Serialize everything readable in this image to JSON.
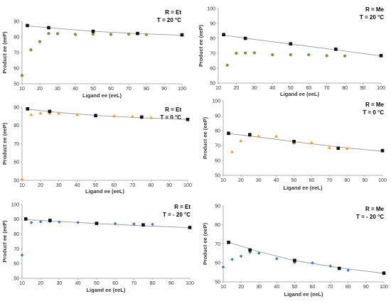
{
  "chart_data": [
    {
      "type": "scatter",
      "annotation": [
        "R = Et",
        "T = 20 °C"
      ],
      "xlabel": "Ligand ee (eeL)",
      "ylabel": "Product ee (eeP)",
      "xlim": [
        10,
        100
      ],
      "ylim": [
        50,
        90
      ],
      "xticks": [
        10,
        20,
        30,
        40,
        50,
        60,
        70,
        80,
        90,
        100
      ],
      "yticks": [
        50,
        60,
        70,
        80,
        90
      ],
      "colored_marker": "circle",
      "colored_color": "#6a9a3a",
      "trend": [
        [
          12,
          87.2
        ],
        [
          30,
          85.4
        ],
        [
          50,
          83.6
        ],
        [
          75,
          82.1
        ],
        [
          100,
          81.1
        ]
      ],
      "squares": [
        [
          13,
          87.3
        ],
        [
          25,
          85.9
        ],
        [
          50,
          83.6
        ],
        [
          75,
          82.2
        ],
        [
          100,
          81.3
        ]
      ],
      "colored": [
        [
          10,
          55.3
        ],
        [
          15,
          71.7
        ],
        [
          20,
          77
        ],
        [
          25,
          82.2
        ],
        [
          30,
          82.1
        ],
        [
          40,
          81.6
        ],
        [
          50,
          81.8
        ],
        [
          60,
          81.6
        ],
        [
          70,
          81.8
        ],
        [
          80,
          81.5
        ],
        [
          100,
          81.2
        ]
      ]
    },
    {
      "type": "scatter",
      "annotation": [
        "R = Me",
        "T = 20 °C"
      ],
      "xlabel": "Ligand ee (eeL)",
      "ylabel": "Product ee (eeP)",
      "xlim": [
        10,
        100
      ],
      "ylim": [
        50,
        100
      ],
      "xticks": [
        10,
        20,
        30,
        40,
        50,
        60,
        70,
        80,
        90,
        100
      ],
      "yticks": [
        50,
        60,
        70,
        80,
        90,
        100
      ],
      "colored_marker": "circle",
      "colored_color": "#6a9a3a",
      "trend": [
        [
          12,
          82.3
        ],
        [
          30,
          79.3
        ],
        [
          50,
          76.2
        ],
        [
          75,
          72.3
        ],
        [
          100,
          68.2
        ]
      ],
      "squares": [
        [
          13,
          82.5
        ],
        [
          25,
          80
        ],
        [
          50,
          76.3
        ],
        [
          75,
          72.7
        ],
        [
          100,
          68.4
        ]
      ],
      "colored": [
        [
          15,
          62
        ],
        [
          20,
          70
        ],
        [
          25,
          70.2
        ],
        [
          30,
          70.3
        ],
        [
          40,
          69
        ],
        [
          50,
          69
        ],
        [
          60,
          69
        ],
        [
          70,
          68.4
        ],
        [
          80,
          68.2
        ],
        [
          100,
          68.4
        ]
      ]
    },
    {
      "type": "scatter",
      "annotation": [
        "R = Et",
        "T = 0 °C"
      ],
      "xlabel": "Ligand ee (eeL)",
      "ylabel": "Product ee (eeP)",
      "xlim": [
        10,
        100
      ],
      "ylim": [
        50,
        90
      ],
      "xticks": [
        10,
        20,
        30,
        40,
        50,
        60,
        70,
        80,
        90,
        100
      ],
      "yticks": [
        50,
        60,
        70,
        80,
        90
      ],
      "colored_marker": "triangle",
      "colored_color": "#e5a321",
      "trend": [
        [
          12,
          89
        ],
        [
          30,
          87.1
        ],
        [
          50,
          85.5
        ],
        [
          75,
          84.2
        ],
        [
          100,
          83.3
        ]
      ],
      "squares": [
        [
          13,
          89.1
        ],
        [
          25,
          87.7
        ],
        [
          50,
          85.4
        ],
        [
          75,
          84.6
        ],
        [
          100,
          83.3
        ]
      ],
      "colored": [
        [
          10,
          50.8
        ],
        [
          15,
          85.9
        ],
        [
          20,
          86.7
        ],
        [
          25,
          86.7
        ],
        [
          30,
          86.6
        ],
        [
          40,
          85.9
        ],
        [
          50,
          85.8
        ],
        [
          60,
          85.2
        ],
        [
          70,
          84.9
        ],
        [
          80,
          84.3
        ],
        [
          100,
          83.5
        ]
      ]
    },
    {
      "type": "scatter",
      "annotation": [
        "R = Me",
        "T = 0 °C"
      ],
      "xlabel": "Ligand ee (eeL)",
      "ylabel": "Product ee (eeP)",
      "xlim": [
        10,
        100
      ],
      "ylim": [
        50,
        100
      ],
      "xticks": [
        10,
        20,
        30,
        40,
        50,
        60,
        70,
        80,
        90,
        100
      ],
      "yticks": [
        50,
        60,
        70,
        80,
        90,
        100
      ],
      "colored_marker": "triangle",
      "colored_color": "#e5a321",
      "trend": [
        [
          12,
          78.2
        ],
        [
          30,
          75.7
        ],
        [
          50,
          72.6
        ],
        [
          75,
          69
        ],
        [
          100,
          66.2
        ]
      ],
      "squares": [
        [
          13,
          78.2
        ],
        [
          25,
          77.3
        ],
        [
          50,
          72.7
        ],
        [
          75,
          68.2
        ],
        [
          100,
          66.6
        ]
      ],
      "colored": [
        [
          15,
          65.8
        ],
        [
          20,
          73.1
        ],
        [
          25,
          76.7
        ],
        [
          30,
          76.3
        ],
        [
          40,
          76.2
        ],
        [
          50,
          71.7
        ],
        [
          60,
          71.9
        ],
        [
          70,
          68.6
        ],
        [
          80,
          68.1
        ],
        [
          100,
          66.3
        ]
      ]
    },
    {
      "type": "scatter",
      "annotation": [
        "R = Et",
        "T = - 20 °C"
      ],
      "xlabel": "Ligand ee (eeL)",
      "ylabel": "Product ee (eeP)",
      "xlim": [
        10,
        100
      ],
      "ylim": [
        50,
        100
      ],
      "xticks": [
        10,
        20,
        30,
        40,
        50,
        60,
        70,
        80,
        90,
        100
      ],
      "yticks": [
        50,
        60,
        70,
        80,
        90,
        100
      ],
      "colored_marker": "diamond",
      "colored_color": "#3a7bbf",
      "trend": [
        [
          12,
          89.8
        ],
        [
          30,
          88.5
        ],
        [
          50,
          87.1
        ],
        [
          75,
          85.6
        ],
        [
          100,
          84.3
        ]
      ],
      "squares": [
        [
          12,
          90.2
        ],
        [
          25,
          89.2
        ],
        [
          50,
          87.2
        ],
        [
          75,
          86.2
        ],
        [
          100,
          84.4
        ]
      ],
      "colored": [
        [
          10,
          65.7
        ],
        [
          15,
          87.7
        ],
        [
          20,
          88.3
        ],
        [
          25,
          88.5
        ],
        [
          30,
          88.2
        ],
        [
          40,
          87.8
        ],
        [
          50,
          87.2
        ],
        [
          60,
          87
        ],
        [
          70,
          86.8
        ],
        [
          80,
          86.6
        ],
        [
          100,
          84.5
        ]
      ]
    },
    {
      "type": "scatter",
      "annotation": [
        "R = Me",
        "T = - 20 °C"
      ],
      "xlabel": "Ligand ee (eeL)",
      "ylabel": "Product ee (eeP)",
      "xlim": [
        10,
        100
      ],
      "ylim": [
        50,
        90
      ],
      "xticks": [
        10,
        20,
        30,
        40,
        50,
        60,
        70,
        80,
        90,
        100
      ],
      "yticks": [
        50,
        60,
        70,
        80,
        90
      ],
      "colored_marker": "diamond",
      "colored_color": "#3a7bbf",
      "trend": [
        [
          12,
          71.2
        ],
        [
          30,
          65.9
        ],
        [
          50,
          61.2
        ],
        [
          75,
          57.4
        ],
        [
          100,
          54.5
        ]
      ],
      "squares": [
        [
          13,
          70.8
        ],
        [
          25,
          66.8
        ],
        [
          50,
          61.3
        ],
        [
          75,
          57.1
        ],
        [
          100,
          54.6
        ]
      ],
      "colored": [
        [
          10,
          57.8
        ],
        [
          15,
          61.8
        ],
        [
          20,
          63.5
        ],
        [
          25,
          65.6
        ],
        [
          30,
          65.1
        ],
        [
          40,
          62.2
        ],
        [
          50,
          60.2
        ],
        [
          60,
          60
        ],
        [
          70,
          58.3
        ],
        [
          80,
          56.1
        ],
        [
          100,
          54.7
        ]
      ]
    }
  ]
}
